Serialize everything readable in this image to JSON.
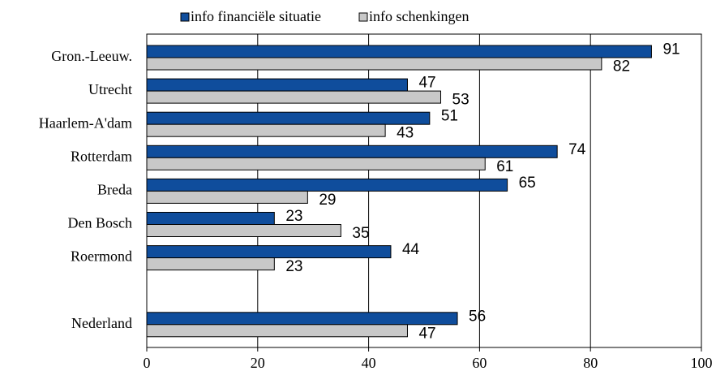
{
  "chart_data": {
    "type": "bar",
    "orientation": "horizontal",
    "categories": [
      "Gron.-Leeuw.",
      "Utrecht",
      "Haarlem-A'dam",
      "Rotterdam",
      "Breda",
      "Den Bosch",
      "Roermond",
      null,
      "Nederland"
    ],
    "series": [
      {
        "name": "info financiële situatie",
        "color": "#0f4d9c",
        "values": [
          91,
          47,
          51,
          74,
          65,
          23,
          44,
          null,
          56
        ]
      },
      {
        "name": "info schenkingen",
        "color": "#c8c8c8",
        "values": [
          82,
          53,
          43,
          61,
          29,
          35,
          23,
          null,
          47
        ]
      }
    ],
    "xlim": [
      0,
      100
    ],
    "xticks": [
      0,
      20,
      40,
      60,
      80,
      100
    ],
    "grid": true,
    "legend": "top"
  }
}
